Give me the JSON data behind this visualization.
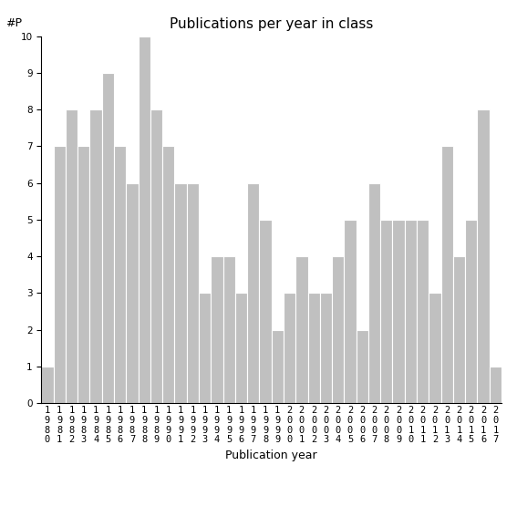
{
  "title": "Publications per year in class",
  "xlabel": "Publication year",
  "ylabel": "#P",
  "years": [
    1980,
    1981,
    1982,
    1983,
    1984,
    1985,
    1986,
    1987,
    1988,
    1989,
    1990,
    1991,
    1992,
    1993,
    1994,
    1995,
    1996,
    1997,
    1998,
    1999,
    2000,
    2001,
    2002,
    2003,
    2004,
    2005,
    2006,
    2007,
    2008,
    2009,
    2010,
    2011,
    2012,
    2013,
    2014,
    2015,
    2016,
    2017
  ],
  "values": [
    1,
    7,
    8,
    7,
    8,
    9,
    7,
    6,
    10,
    8,
    7,
    6,
    6,
    3,
    4,
    4,
    3,
    6,
    5,
    2,
    3,
    4,
    3,
    3,
    4,
    5,
    2,
    6,
    5,
    5,
    5,
    5,
    3,
    7,
    4,
    5,
    8,
    1
  ],
  "bar_color": "#c0c0c0",
  "bar_edge_color": "#ffffff",
  "ylim": [
    0,
    10
  ],
  "yticks": [
    0,
    1,
    2,
    3,
    4,
    5,
    6,
    7,
    8,
    9,
    10
  ],
  "background_color": "#ffffff",
  "title_fontsize": 11,
  "axis_label_fontsize": 9,
  "tick_fontsize": 7.5
}
